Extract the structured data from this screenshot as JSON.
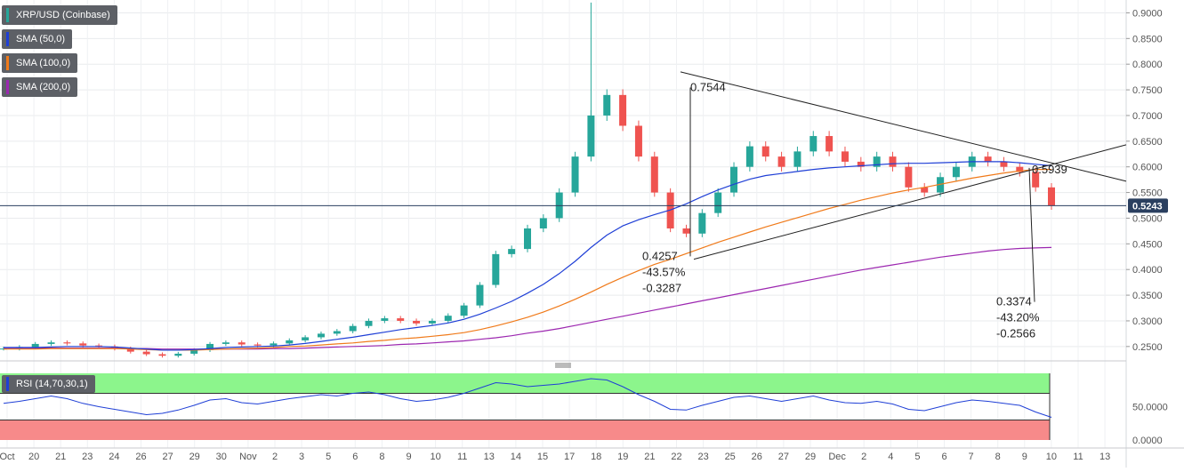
{
  "legend": {
    "main": {
      "label": "XRP/USD (Coinbase)",
      "color": "#26a69a"
    },
    "sma50": {
      "label": "SMA (50,0)",
      "color": "#1f3fd6"
    },
    "sma100": {
      "label": "SMA (100,0)",
      "color": "#f07a1a"
    },
    "sma200": {
      "label": "SMA (200,0)",
      "color": "#9c27b0"
    },
    "rsi": {
      "label": "RSI (14,70,30,1)",
      "color": "#1f3fd6"
    }
  },
  "price_badge": {
    "value": "0.5243",
    "color": "#2a3f5f"
  },
  "annotations": {
    "peak": "0.7544",
    "apex": "0.5939",
    "left_measure": [
      "0.4257",
      "-43.57%",
      "-0.3287"
    ],
    "right_measure": [
      "0.3374",
      "-43.20%",
      "-0.2566"
    ]
  },
  "chart_data": {
    "type": "candlestick",
    "title": "XRP/USD (Coinbase)",
    "y_axis": {
      "ticks": [
        "0.9000",
        "0.8500",
        "0.8000",
        "0.7500",
        "0.7000",
        "0.6500",
        "0.6000",
        "0.5500",
        "0.5000",
        "0.4500",
        "0.4000",
        "0.3500",
        "0.3000",
        "0.2500"
      ],
      "range": [
        0.222,
        0.925
      ]
    },
    "x_axis": {
      "ticks": [
        "Oct",
        "20",
        "21",
        "23",
        "24",
        "26",
        "27",
        "29",
        "30",
        "Nov",
        "2",
        "3",
        "5",
        "6",
        "8",
        "9",
        "10",
        "11",
        "13",
        "14",
        "15",
        "17",
        "18",
        "19",
        "21",
        "22",
        "23",
        "25",
        "26",
        "27",
        "29",
        "Dec",
        "2",
        "4",
        "5",
        "6",
        "7",
        "8",
        "9",
        "10",
        "11",
        "13"
      ]
    },
    "close": [
      0.246,
      0.249,
      0.255,
      0.258,
      0.256,
      0.252,
      0.25,
      0.246,
      0.24,
      0.235,
      0.232,
      0.236,
      0.243,
      0.255,
      0.258,
      0.254,
      0.252,
      0.256,
      0.262,
      0.268,
      0.275,
      0.28,
      0.29,
      0.3,
      0.305,
      0.3,
      0.295,
      0.3,
      0.31,
      0.33,
      0.37,
      0.43,
      0.44,
      0.48,
      0.5,
      0.55,
      0.62,
      0.7,
      0.74,
      0.68,
      0.62,
      0.55,
      0.48,
      0.47,
      0.51,
      0.55,
      0.6,
      0.64,
      0.62,
      0.6,
      0.63,
      0.66,
      0.63,
      0.61,
      0.6,
      0.62,
      0.6,
      0.56,
      0.55,
      0.58,
      0.6,
      0.62,
      0.61,
      0.6,
      0.59,
      0.56,
      0.5243
    ],
    "sma50": [
      0.248,
      0.248,
      0.248,
      0.249,
      0.25,
      0.25,
      0.25,
      0.249,
      0.247,
      0.245,
      0.243,
      0.243,
      0.244,
      0.246,
      0.248,
      0.249,
      0.25,
      0.251,
      0.253,
      0.256,
      0.26,
      0.264,
      0.268,
      0.273,
      0.278,
      0.283,
      0.287,
      0.291,
      0.296,
      0.303,
      0.313,
      0.325,
      0.338,
      0.354,
      0.371,
      0.392,
      0.416,
      0.443,
      0.467,
      0.485,
      0.497,
      0.507,
      0.516,
      0.528,
      0.542,
      0.555,
      0.566,
      0.576,
      0.583,
      0.587,
      0.591,
      0.595,
      0.598,
      0.6,
      0.602,
      0.604,
      0.606,
      0.607,
      0.607,
      0.608,
      0.609,
      0.61,
      0.61,
      0.61,
      0.608,
      0.605,
      0.602
    ],
    "sma100": [
      0.245,
      0.245,
      0.245,
      0.246,
      0.246,
      0.246,
      0.246,
      0.246,
      0.245,
      0.244,
      0.243,
      0.243,
      0.243,
      0.244,
      0.245,
      0.246,
      0.247,
      0.248,
      0.25,
      0.251,
      0.253,
      0.255,
      0.257,
      0.26,
      0.262,
      0.265,
      0.267,
      0.27,
      0.273,
      0.277,
      0.283,
      0.29,
      0.298,
      0.307,
      0.317,
      0.329,
      0.342,
      0.356,
      0.371,
      0.385,
      0.398,
      0.41,
      0.42,
      0.431,
      0.442,
      0.453,
      0.463,
      0.473,
      0.483,
      0.492,
      0.501,
      0.51,
      0.519,
      0.527,
      0.535,
      0.542,
      0.549,
      0.555,
      0.56,
      0.566,
      0.572,
      0.578,
      0.583,
      0.588,
      0.592,
      0.595,
      0.595
    ],
    "sma200": [
      0.247,
      0.247,
      0.247,
      0.247,
      0.247,
      0.247,
      0.247,
      0.247,
      0.246,
      0.246,
      0.245,
      0.245,
      0.245,
      0.245,
      0.245,
      0.245,
      0.245,
      0.246,
      0.246,
      0.247,
      0.248,
      0.249,
      0.25,
      0.251,
      0.252,
      0.254,
      0.255,
      0.257,
      0.259,
      0.261,
      0.264,
      0.267,
      0.271,
      0.276,
      0.28,
      0.285,
      0.291,
      0.297,
      0.303,
      0.309,
      0.315,
      0.321,
      0.327,
      0.333,
      0.339,
      0.345,
      0.351,
      0.357,
      0.363,
      0.369,
      0.375,
      0.381,
      0.387,
      0.393,
      0.399,
      0.404,
      0.409,
      0.414,
      0.419,
      0.424,
      0.428,
      0.432,
      0.436,
      0.439,
      0.441,
      0.442,
      0.443
    ],
    "rsi": {
      "ticks": [
        "50.0000",
        "0.0000"
      ],
      "range": [
        0,
        100
      ],
      "overbought": 70,
      "oversold": 30,
      "values": [
        55,
        58,
        62,
        66,
        62,
        55,
        50,
        46,
        42,
        38,
        40,
        45,
        52,
        60,
        62,
        56,
        54,
        58,
        62,
        65,
        68,
        66,
        70,
        72,
        68,
        62,
        58,
        60,
        64,
        70,
        78,
        86,
        84,
        80,
        82,
        84,
        88,
        92,
        90,
        80,
        68,
        58,
        46,
        45,
        52,
        58,
        64,
        66,
        62,
        58,
        62,
        66,
        60,
        56,
        55,
        58,
        54,
        46,
        44,
        50,
        56,
        60,
        58,
        55,
        52,
        42,
        34
      ]
    }
  }
}
